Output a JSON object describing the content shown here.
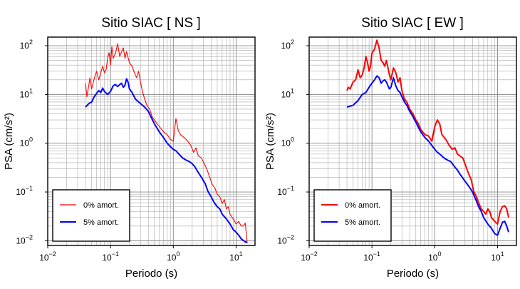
{
  "chart_data": [
    {
      "type": "line",
      "title": "Sitio SIAC [ NS ]",
      "xlabel": "Periodo (s)",
      "ylabel": "PSA (cm/s²)",
      "xscale": "log",
      "yscale": "log",
      "xlim": [
        0.01,
        20
      ],
      "ylim": [
        0.008,
        150
      ],
      "grid": true,
      "legend_position": "bottom-left",
      "xticks": [
        {
          "value": 0.01,
          "base": "10",
          "exp": "−2"
        },
        {
          "value": 0.1,
          "base": "10",
          "exp": "−1"
        },
        {
          "value": 1,
          "base": "10",
          "exp": "0"
        },
        {
          "value": 10,
          "base": "10",
          "exp": "1"
        }
      ],
      "yticks": [
        {
          "value": 0.01,
          "base": "10",
          "exp": "−2"
        },
        {
          "value": 0.1,
          "base": "10",
          "exp": "−1"
        },
        {
          "value": 1,
          "base": "10",
          "exp": "0"
        },
        {
          "value": 10,
          "base": "10",
          "exp": "1"
        },
        {
          "value": 100,
          "base": "10",
          "exp": "2"
        }
      ],
      "series": [
        {
          "name": "0% amort.",
          "color": "#ff0000",
          "stroke": "thin",
          "points": [
            [
              0.04,
              17
            ],
            [
              0.042,
              9
            ],
            [
              0.045,
              15
            ],
            [
              0.047,
              22
            ],
            [
              0.05,
              13
            ],
            [
              0.055,
              21
            ],
            [
              0.06,
              30
            ],
            [
              0.065,
              20
            ],
            [
              0.07,
              28
            ],
            [
              0.075,
              38
            ],
            [
              0.08,
              28
            ],
            [
              0.085,
              32
            ],
            [
              0.09,
              55
            ],
            [
              0.095,
              72
            ],
            [
              0.1,
              40
            ],
            [
              0.105,
              95
            ],
            [
              0.11,
              55
            ],
            [
              0.12,
              70
            ],
            [
              0.13,
              110
            ],
            [
              0.14,
              60
            ],
            [
              0.15,
              75
            ],
            [
              0.16,
              90
            ],
            [
              0.17,
              55
            ],
            [
              0.18,
              75
            ],
            [
              0.2,
              45
            ],
            [
              0.22,
              38
            ],
            [
              0.24,
              28
            ],
            [
              0.26,
              22
            ],
            [
              0.28,
              30
            ],
            [
              0.3,
              18
            ],
            [
              0.32,
              12
            ],
            [
              0.35,
              8
            ],
            [
              0.38,
              6
            ],
            [
              0.42,
              5
            ],
            [
              0.46,
              3.5
            ],
            [
              0.5,
              3
            ],
            [
              0.55,
              2.5
            ],
            [
              0.6,
              2.2
            ],
            [
              0.7,
              1.7
            ],
            [
              0.8,
              1.5
            ],
            [
              0.9,
              1.2
            ],
            [
              1.0,
              1.1
            ],
            [
              1.1,
              3.2
            ],
            [
              1.2,
              1.8
            ],
            [
              1.3,
              1.5
            ],
            [
              1.5,
              1.3
            ],
            [
              1.7,
              1.1
            ],
            [
              1.9,
              0.9
            ],
            [
              2.1,
              0.65
            ],
            [
              2.3,
              0.8
            ],
            [
              2.5,
              0.55
            ],
            [
              2.8,
              0.5
            ],
            [
              3.1,
              0.38
            ],
            [
              3.4,
              0.3
            ],
            [
              3.8,
              0.2
            ],
            [
              4.2,
              0.14
            ],
            [
              4.6,
              0.12
            ],
            [
              5.0,
              0.09
            ],
            [
              5.5,
              0.08
            ],
            [
              6.0,
              0.058
            ],
            [
              6.5,
              0.07
            ],
            [
              7.0,
              0.045
            ],
            [
              7.5,
              0.05
            ],
            [
              8.0,
              0.035
            ],
            [
              9.0,
              0.028
            ],
            [
              10.0,
              0.022
            ],
            [
              11.0,
              0.025
            ],
            [
              12.0,
              0.02
            ],
            [
              13.0,
              0.02
            ],
            [
              14.0,
              0.023
            ],
            [
              15.0,
              0.009
            ]
          ]
        },
        {
          "name": "5% amort.",
          "color": "#0000ff",
          "stroke": "thick",
          "points": [
            [
              0.04,
              5.5
            ],
            [
              0.045,
              6.5
            ],
            [
              0.05,
              7
            ],
            [
              0.055,
              9
            ],
            [
              0.06,
              10.5
            ],
            [
              0.065,
              12
            ],
            [
              0.07,
              11
            ],
            [
              0.075,
              13.5
            ],
            [
              0.08,
              11.5
            ],
            [
              0.09,
              10
            ],
            [
              0.1,
              11.5
            ],
            [
              0.11,
              15
            ],
            [
              0.12,
              16
            ],
            [
              0.13,
              14.5
            ],
            [
              0.14,
              16
            ],
            [
              0.15,
              17
            ],
            [
              0.16,
              14
            ],
            [
              0.17,
              15.5
            ],
            [
              0.18,
              21
            ],
            [
              0.19,
              18
            ],
            [
              0.2,
              13
            ],
            [
              0.22,
              11
            ],
            [
              0.25,
              8
            ],
            [
              0.3,
              6.5
            ],
            [
              0.35,
              5.5
            ],
            [
              0.4,
              4.5
            ],
            [
              0.5,
              2.5
            ],
            [
              0.6,
              1.7
            ],
            [
              0.7,
              1.3
            ],
            [
              0.8,
              1.0
            ],
            [
              0.9,
              0.85
            ],
            [
              1.0,
              0.75
            ],
            [
              1.1,
              0.7
            ],
            [
              1.2,
              0.62
            ],
            [
              1.4,
              0.5
            ],
            [
              1.6,
              0.45
            ],
            [
              1.8,
              0.42
            ],
            [
              2.0,
              0.38
            ],
            [
              2.2,
              0.33
            ],
            [
              2.5,
              0.25
            ],
            [
              2.8,
              0.2
            ],
            [
              3.2,
              0.15
            ],
            [
              3.6,
              0.1
            ],
            [
              4.0,
              0.08
            ],
            [
              4.5,
              0.06
            ],
            [
              5.0,
              0.05
            ],
            [
              5.5,
              0.045
            ],
            [
              6.0,
              0.035
            ],
            [
              7.0,
              0.028
            ],
            [
              8.0,
              0.022
            ],
            [
              9.0,
              0.017
            ],
            [
              10.0,
              0.015
            ],
            [
              11.0,
              0.013
            ],
            [
              12.0,
              0.011
            ],
            [
              14.0,
              0.0095
            ],
            [
              15.0,
              0.0092
            ]
          ]
        }
      ]
    },
    {
      "type": "line",
      "title": "Sitio SIAC [ EW ]",
      "xlabel": "Periodo (s)",
      "ylabel": "PSA (cm/s²)",
      "xscale": "log",
      "yscale": "log",
      "xlim": [
        0.01,
        20
      ],
      "ylim": [
        0.008,
        150
      ],
      "grid": true,
      "legend_position": "bottom-left",
      "xticks": [
        {
          "value": 0.01,
          "base": "10",
          "exp": "−2"
        },
        {
          "value": 0.1,
          "base": "10",
          "exp": "−1"
        },
        {
          "value": 1,
          "base": "10",
          "exp": "0"
        },
        {
          "value": 10,
          "base": "10",
          "exp": "1"
        }
      ],
      "yticks": [
        {
          "value": 0.01,
          "base": "10",
          "exp": "−2"
        },
        {
          "value": 0.1,
          "base": "10",
          "exp": "−1"
        },
        {
          "value": 1,
          "base": "10",
          "exp": "0"
        },
        {
          "value": 10,
          "base": "10",
          "exp": "1"
        },
        {
          "value": 100,
          "base": "10",
          "exp": "2"
        }
      ],
      "series": [
        {
          "name": "0% amort.",
          "color": "#ff0000",
          "stroke": "thick",
          "points": [
            [
              0.04,
              12
            ],
            [
              0.042,
              14
            ],
            [
              0.045,
              13
            ],
            [
              0.05,
              18
            ],
            [
              0.055,
              20
            ],
            [
              0.06,
              32
            ],
            [
              0.065,
              22
            ],
            [
              0.07,
              25
            ],
            [
              0.075,
              35
            ],
            [
              0.08,
              60
            ],
            [
              0.085,
              45
            ],
            [
              0.09,
              30
            ],
            [
              0.095,
              38
            ],
            [
              0.1,
              70
            ],
            [
              0.11,
              85
            ],
            [
              0.12,
              130
            ],
            [
              0.13,
              90
            ],
            [
              0.14,
              50
            ],
            [
              0.15,
              45
            ],
            [
              0.16,
              38
            ],
            [
              0.17,
              50
            ],
            [
              0.18,
              35
            ],
            [
              0.19,
              25
            ],
            [
              0.2,
              20
            ],
            [
              0.22,
              35
            ],
            [
              0.24,
              28
            ],
            [
              0.26,
              18
            ],
            [
              0.28,
              22
            ],
            [
              0.3,
              12
            ],
            [
              0.33,
              8
            ],
            [
              0.36,
              7
            ],
            [
              0.4,
              5
            ],
            [
              0.45,
              4
            ],
            [
              0.5,
              3
            ],
            [
              0.55,
              2.5
            ],
            [
              0.6,
              1.9
            ],
            [
              0.7,
              1.5
            ],
            [
              0.8,
              1.4
            ],
            [
              0.9,
              1.1
            ],
            [
              1.0,
              2.2
            ],
            [
              1.1,
              3.0
            ],
            [
              1.2,
              2.5
            ],
            [
              1.3,
              1.5
            ],
            [
              1.5,
              1.2
            ],
            [
              1.7,
              0.9
            ],
            [
              1.9,
              0.75
            ],
            [
              2.1,
              0.8
            ],
            [
              2.3,
              0.6
            ],
            [
              2.5,
              0.55
            ],
            [
              2.8,
              0.5
            ],
            [
              3.1,
              0.35
            ],
            [
              3.4,
              0.25
            ],
            [
              3.8,
              0.18
            ],
            [
              4.2,
              0.1
            ],
            [
              4.6,
              0.08
            ],
            [
              5.0,
              0.06
            ],
            [
              5.5,
              0.045
            ],
            [
              6.0,
              0.04
            ],
            [
              6.5,
              0.035
            ],
            [
              7.0,
              0.045
            ],
            [
              7.5,
              0.04
            ],
            [
              8.0,
              0.03
            ],
            [
              9.0,
              0.025
            ],
            [
              10.0,
              0.022
            ],
            [
              11.0,
              0.04
            ],
            [
              12.0,
              0.05
            ],
            [
              13.0,
              0.052
            ],
            [
              14.0,
              0.045
            ],
            [
              15.0,
              0.03
            ]
          ]
        },
        {
          "name": "5% amort.",
          "color": "#0000ff",
          "stroke": "thick",
          "points": [
            [
              0.04,
              5.5
            ],
            [
              0.05,
              6
            ],
            [
              0.06,
              7.5
            ],
            [
              0.07,
              10
            ],
            [
              0.08,
              11
            ],
            [
              0.09,
              14
            ],
            [
              0.1,
              17
            ],
            [
              0.11,
              20
            ],
            [
              0.12,
              24
            ],
            [
              0.13,
              22
            ],
            [
              0.14,
              17
            ],
            [
              0.15,
              19
            ],
            [
              0.16,
              20
            ],
            [
              0.17,
              18
            ],
            [
              0.18,
              15
            ],
            [
              0.19,
              13
            ],
            [
              0.2,
              14
            ],
            [
              0.22,
              22
            ],
            [
              0.24,
              15
            ],
            [
              0.26,
              12
            ],
            [
              0.28,
              11
            ],
            [
              0.3,
              9
            ],
            [
              0.33,
              7
            ],
            [
              0.36,
              6
            ],
            [
              0.4,
              4.5
            ],
            [
              0.45,
              3.5
            ],
            [
              0.5,
              2.7
            ],
            [
              0.55,
              2.1
            ],
            [
              0.6,
              1.7
            ],
            [
              0.7,
              1.3
            ],
            [
              0.8,
              1.1
            ],
            [
              0.9,
              0.9
            ],
            [
              1.0,
              0.75
            ],
            [
              1.1,
              0.65
            ],
            [
              1.2,
              0.6
            ],
            [
              1.4,
              0.5
            ],
            [
              1.6,
              0.45
            ],
            [
              1.8,
              0.42
            ],
            [
              2.0,
              0.35
            ],
            [
              2.3,
              0.28
            ],
            [
              2.6,
              0.22
            ],
            [
              3.0,
              0.17
            ],
            [
              3.5,
              0.13
            ],
            [
              4.0,
              0.1
            ],
            [
              4.5,
              0.07
            ],
            [
              5.0,
              0.05
            ],
            [
              5.5,
              0.04
            ],
            [
              6.0,
              0.03
            ],
            [
              7.0,
              0.022
            ],
            [
              8.0,
              0.018
            ],
            [
              9.0,
              0.014
            ],
            [
              10.0,
              0.013
            ],
            [
              11.0,
              0.018
            ],
            [
              12.0,
              0.024
            ],
            [
              13.0,
              0.025
            ],
            [
              14.0,
              0.02
            ],
            [
              15.0,
              0.015
            ]
          ]
        }
      ]
    }
  ]
}
